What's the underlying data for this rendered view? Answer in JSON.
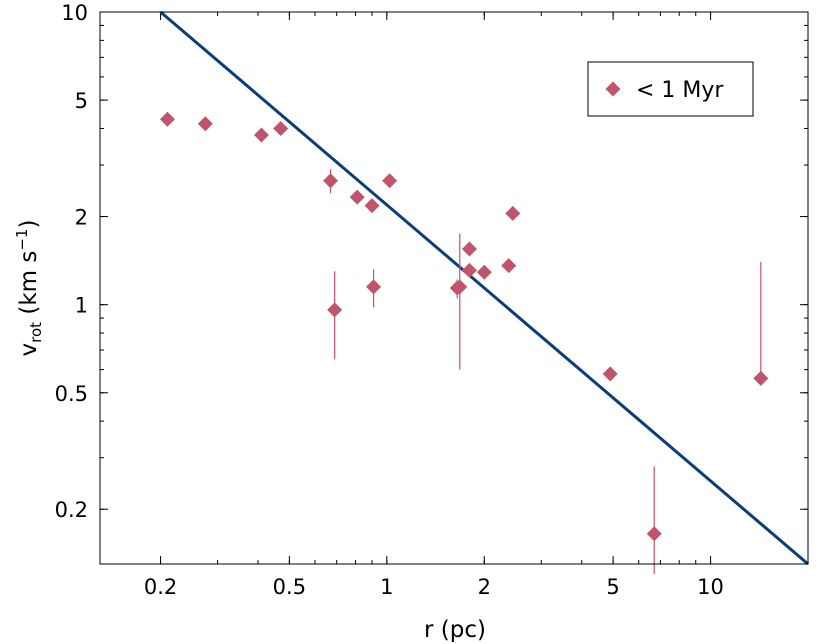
{
  "chart_data": {
    "type": "scatter",
    "x_scale": "log",
    "y_scale": "log",
    "xlim": [
      0.13,
      20
    ],
    "ylim": [
      0.13,
      10
    ],
    "xticks_major": [
      0.2,
      0.5,
      1,
      2,
      5,
      10
    ],
    "xtick_labels": [
      "0.2",
      "0.5",
      "1",
      "2",
      "5",
      "10"
    ],
    "yticks_major": [
      0.2,
      0.5,
      1,
      2,
      5,
      10
    ],
    "ytick_labels": [
      "0.2",
      "0.5",
      "1",
      "2",
      "5",
      "10"
    ],
    "xlabel": "r (pc)",
    "ylabel_main": "v",
    "ylabel_sub": "rot",
    "ylabel_units": " (km s",
    "ylabel_sup": "−1",
    "ylabel_close": ")",
    "grid": false,
    "legend_position": "top-right",
    "series": [
      {
        "name": "< 1 Myr",
        "marker": "diamond",
        "color": "#c0546a",
        "points": [
          {
            "x": 0.21,
            "y": 4.3
          },
          {
            "x": 0.275,
            "y": 4.15
          },
          {
            "x": 0.41,
            "y": 3.8
          },
          {
            "x": 0.47,
            "y": 4.0
          },
          {
            "x": 0.67,
            "y": 2.65,
            "ylo": 2.4,
            "yhi": 2.9
          },
          {
            "x": 0.69,
            "y": 0.96,
            "ylo": 0.65,
            "yhi": 1.3
          },
          {
            "x": 0.81,
            "y": 2.33
          },
          {
            "x": 0.9,
            "y": 2.18
          },
          {
            "x": 0.91,
            "y": 1.15,
            "ylo": 0.98,
            "yhi": 1.32
          },
          {
            "x": 1.02,
            "y": 2.65
          },
          {
            "x": 1.65,
            "y": 1.14,
            "ylo": 1.05,
            "yhi": 1.22
          },
          {
            "x": 1.68,
            "y": 1.15,
            "ylo": 0.6,
            "yhi": 1.75
          },
          {
            "x": 1.8,
            "y": 1.55
          },
          {
            "x": 1.8,
            "y": 1.31
          },
          {
            "x": 2.0,
            "y": 1.29
          },
          {
            "x": 2.38,
            "y": 1.36,
            "ylo": 1.29,
            "yhi": 1.43
          },
          {
            "x": 2.45,
            "y": 2.05
          },
          {
            "x": 4.9,
            "y": 0.58
          },
          {
            "x": 6.7,
            "y": 0.165,
            "ylo": 0.12,
            "yhi": 0.28
          },
          {
            "x": 14.3,
            "y": 0.56,
            "ylo": 0.56,
            "yhi": 1.4
          }
        ]
      }
    ],
    "fit_line": {
      "color": "#0b3d7a",
      "points": [
        [
          0.2,
          10
        ],
        [
          20,
          0.13
        ]
      ]
    },
    "legend": {
      "label": "< 1 Myr",
      "marker_color": "#c0546a"
    }
  }
}
